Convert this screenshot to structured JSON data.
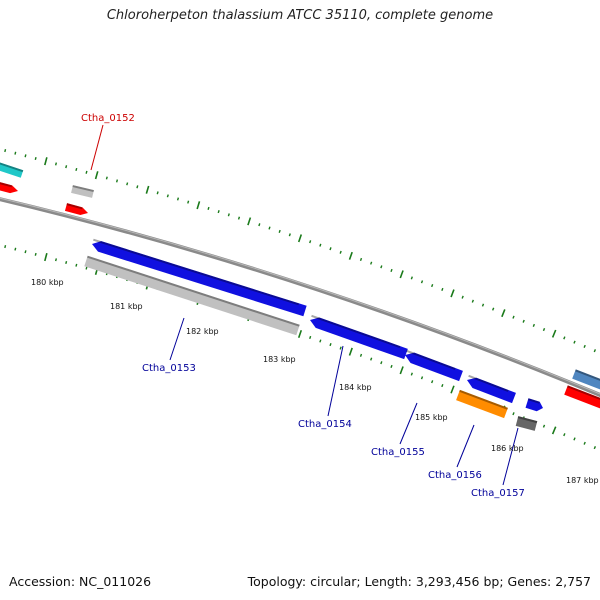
{
  "title": "Chloroherpeton thalassium ATCC 35110, complete genome",
  "footer": {
    "accession": "Accession: NC_011026",
    "stats": "Topology: circular; Length: 3,293,456 bp; Genes: 2,757"
  },
  "colors": {
    "backbone": "#8a8a8a",
    "tick": "#1a7a1a",
    "gene_blue": "#1010e0",
    "gene_gray": "#c0c0c0",
    "gene_orange": "#ff8c00",
    "gene_red": "#ff0000",
    "gene_darkgray": "#666666",
    "gene_cyan": "#20c8c8",
    "gene_steelblue": "#4f86c0",
    "label_red": "#cc0000",
    "label_blue": "#000099"
  },
  "kbp_labels": [
    {
      "text": "180 kbp"
    },
    {
      "text": "181 kbp"
    },
    {
      "text": "182 kbp"
    },
    {
      "text": "183 kbp"
    },
    {
      "text": "184 kbp"
    },
    {
      "text": "185 kbp"
    },
    {
      "text": "186 kbp"
    },
    {
      "text": "187 kbp"
    }
  ],
  "gene_labels": [
    {
      "text": "Ctha_0152",
      "color": "red"
    },
    {
      "text": "Ctha_0153",
      "color": "blue"
    },
    {
      "text": "Ctha_0154",
      "color": "blue"
    },
    {
      "text": "Ctha_0155",
      "color": "blue"
    },
    {
      "text": "Ctha_0156",
      "color": "blue"
    },
    {
      "text": "Ctha_0157",
      "color": "blue"
    }
  ]
}
